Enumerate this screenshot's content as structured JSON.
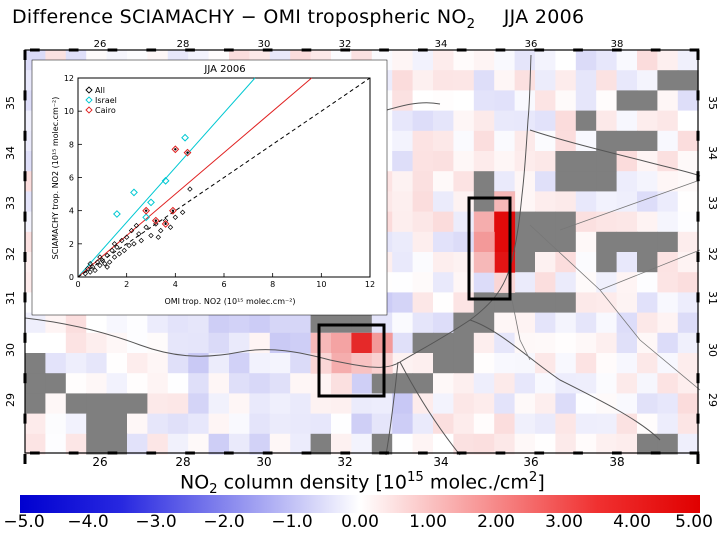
{
  "title": {
    "main": "Difference SCIAMACHY − OMI tropospheric NO",
    "sub": "2",
    "season": "JJA 2006"
  },
  "map": {
    "lon_ticks": [
      "26",
      "28",
      "30",
      "32",
      "34",
      "36",
      "38"
    ],
    "lat_ticks": [
      "35",
      "34",
      "33",
      "32",
      "31",
      "30",
      "29"
    ],
    "missing_color": "#7f7f7f"
  },
  "inset": {
    "title": "JJA 2006",
    "ylabel": "SCIAMACHY trop. NO2 (10¹⁵ molec.cm⁻²)",
    "xlabel": "OMI trop. NO2 (10¹⁵ molec.cm⁻²)",
    "ticks": [
      "0",
      "2",
      "4",
      "6",
      "8",
      "10",
      "12"
    ],
    "legend": [
      "All",
      "Israel",
      "Cairo"
    ],
    "colors": {
      "all": "#000000",
      "israel": "#00c8d2",
      "cairo": "#e02020"
    }
  },
  "colorbar": {
    "label_main": "NO",
    "label_sub": "2",
    "label_rest": " column density [10",
    "label_exp": "15",
    "label_end": " molec./cm",
    "label_exp2": "2",
    "label_close": "]",
    "ticks": [
      "−5.0",
      "−4.0",
      "−3.0",
      "−2.0",
      "−1.0",
      "0.00",
      "1.00",
      "2.00",
      "3.00",
      "4.00",
      "5.00"
    ],
    "min_color": "#0000d0",
    "mid_color": "#ffffff",
    "max_color": "#e00000"
  },
  "chart_data": {
    "type": "scatter",
    "title": "JJA 2006",
    "xlabel": "OMI trop. NO2 (10^15 molec.cm^-2)",
    "ylabel": "SCIAMACHY trop. NO2 (10^15 molec.cm^-2)",
    "xlim": [
      0,
      12
    ],
    "ylim": [
      0,
      12
    ],
    "series": [
      {
        "name": "All",
        "points": [
          [
            0.3,
            0.2
          ],
          [
            0.4,
            0.5
          ],
          [
            0.5,
            0.3
          ],
          [
            0.6,
            0.6
          ],
          [
            0.7,
            0.4
          ],
          [
            0.8,
            0.9
          ],
          [
            0.9,
            0.7
          ],
          [
            1.0,
            1.0
          ],
          [
            1.1,
            0.8
          ],
          [
            1.2,
            1.3
          ],
          [
            1.3,
            0.9
          ],
          [
            1.4,
            1.6
          ],
          [
            1.5,
            1.2
          ],
          [
            1.6,
            1.8
          ],
          [
            1.7,
            1.4
          ],
          [
            1.8,
            2.2
          ],
          [
            1.9,
            1.6
          ],
          [
            2.0,
            2.4
          ],
          [
            2.1,
            1.9
          ],
          [
            2.2,
            2.8
          ],
          [
            2.3,
            2.0
          ],
          [
            2.5,
            2.6
          ],
          [
            2.6,
            2.2
          ],
          [
            2.8,
            3.0
          ],
          [
            3.0,
            2.5
          ],
          [
            3.2,
            3.2
          ],
          [
            3.4,
            2.8
          ],
          [
            3.6,
            3.4
          ],
          [
            3.8,
            3.0
          ],
          [
            4.0,
            3.6
          ],
          [
            0.5,
            0.8
          ],
          [
            0.9,
            1.2
          ],
          [
            1.2,
            0.6
          ],
          [
            1.5,
            2.0
          ],
          [
            2.4,
            3.1
          ],
          [
            3.3,
            2.4
          ],
          [
            4.3,
            3.9
          ],
          [
            4.6,
            5.3
          ]
        ]
      },
      {
        "name": "Israel",
        "points": [
          [
            1.6,
            3.8
          ],
          [
            2.3,
            5.1
          ],
          [
            3.0,
            4.5
          ],
          [
            3.6,
            5.8
          ],
          [
            4.4,
            8.4
          ],
          [
            2.8,
            3.6
          ]
        ]
      },
      {
        "name": "Cairo",
        "points": [
          [
            2.8,
            4.0
          ],
          [
            3.2,
            3.4
          ],
          [
            3.9,
            4.0
          ],
          [
            4.0,
            7.7
          ],
          [
            4.5,
            7.5
          ],
          [
            3.6,
            3.2
          ]
        ]
      }
    ],
    "lines": [
      {
        "name": "Israel fit",
        "slope": 1.65,
        "intercept": 0.0
      },
      {
        "name": "Cairo fit",
        "slope": 1.25,
        "intercept": 0.0
      },
      {
        "name": "1:1",
        "slope": 1.0,
        "intercept": 0.0
      }
    ]
  }
}
